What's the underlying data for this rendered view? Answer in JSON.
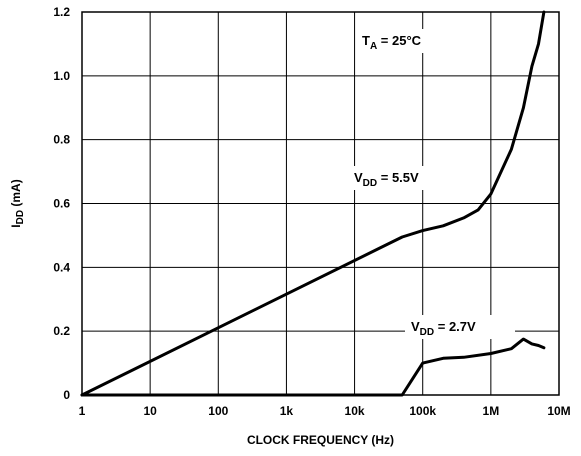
{
  "chart_data": {
    "type": "line",
    "x_scale": "log",
    "xlabel": "CLOCK FREQUENCY (Hz)",
    "ylabel": {
      "main": "I",
      "sub": "DD",
      "rest": " (mA)"
    },
    "xlim": [
      1,
      10000000
    ],
    "ylim": [
      0,
      1.2
    ],
    "grid": true,
    "x_ticks": [
      {
        "value": 1,
        "label": "1"
      },
      {
        "value": 10,
        "label": "10"
      },
      {
        "value": 100,
        "label": "100"
      },
      {
        "value": 1000,
        "label": "1k"
      },
      {
        "value": 10000,
        "label": "10k"
      },
      {
        "value": 100000,
        "label": "100k"
      },
      {
        "value": 1000000,
        "label": "1M"
      },
      {
        "value": 10000000,
        "label": "10M"
      }
    ],
    "y_ticks": [
      {
        "value": 0,
        "label": "0"
      },
      {
        "value": 0.2,
        "label": "0.2"
      },
      {
        "value": 0.4,
        "label": "0.4"
      },
      {
        "value": 0.6,
        "label": "0.6"
      },
      {
        "value": 0.8,
        "label": "0.8"
      },
      {
        "value": 1.0,
        "label": "1.0"
      },
      {
        "value": 1.2,
        "label": "1.2"
      }
    ],
    "annotations": [
      {
        "main": "T",
        "sub": "A",
        "rest": " = 25°C"
      }
    ],
    "series": [
      {
        "label": {
          "main": "V",
          "sub": "DD",
          "rest": " = 5.5V"
        },
        "x": [
          1,
          50000,
          100000,
          200000,
          400000,
          650000,
          1000000,
          2000000,
          3000000,
          4000000,
          5000000,
          6000000
        ],
        "y": [
          0,
          0.495,
          0.515,
          0.53,
          0.555,
          0.58,
          0.63,
          0.77,
          0.9,
          1.03,
          1.1,
          1.2
        ]
      },
      {
        "label": {
          "main": "V",
          "sub": "DD",
          "rest": " = 2.7V"
        },
        "x": [
          1,
          50000,
          100000,
          200000,
          400000,
          1000000,
          2000000,
          3000000,
          4000000,
          5000000,
          6000000
        ],
        "y": [
          0,
          0,
          0.1,
          0.115,
          0.118,
          0.13,
          0.145,
          0.175,
          0.16,
          0.155,
          0.148
        ]
      }
    ]
  }
}
